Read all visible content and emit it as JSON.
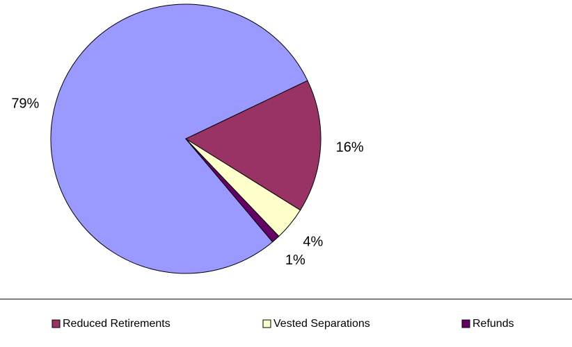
{
  "chart_data": {
    "type": "pie",
    "categories": [
      null,
      "Reduced Retirements",
      "Vested Separations",
      "Refunds"
    ],
    "values": [
      79,
      16,
      4,
      1
    ],
    "value_labels": [
      "79%",
      "16%",
      "4%",
      "1%"
    ],
    "colors": [
      "#9999ff",
      "#993366",
      "#ffffcc",
      "#660066"
    ],
    "legend": "bottom"
  }
}
